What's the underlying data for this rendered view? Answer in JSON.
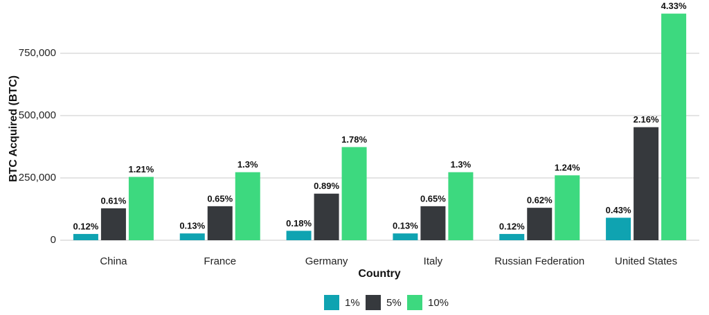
{
  "chart_data": {
    "type": "bar",
    "y_label": "BTC Acquired (BTC)",
    "x_label": "Country",
    "categories": [
      "China",
      "France",
      "Germany",
      "Italy",
      "Russian Federation",
      "United States"
    ],
    "series": [
      {
        "name": "1%",
        "color": "#0fa3b1",
        "values": [
          25200,
          27300,
          37800,
          27300,
          25200,
          90300
        ],
        "value_labels": [
          "0.12%",
          "0.13%",
          "0.18%",
          "0.13%",
          "0.12%",
          "0.43%"
        ]
      },
      {
        "name": "5%",
        "color": "#36393d",
        "values": [
          128100,
          136500,
          186900,
          136500,
          130200,
          453600
        ],
        "value_labels": [
          "0.61%",
          "0.65%",
          "0.89%",
          "0.65%",
          "0.62%",
          "2.16%"
        ]
      },
      {
        "name": "10%",
        "color": "#3dd97f",
        "values": [
          254100,
          273000,
          373800,
          273000,
          260400,
          909300
        ],
        "value_labels": [
          "1.21%",
          "1.3%",
          "1.78%",
          "1.3%",
          "1.24%",
          "4.33%"
        ]
      }
    ],
    "ylim": [
      0,
      950000
    ],
    "yticks": [
      0,
      {
        "value": 250000,
        "label": "250,000"
      },
      {
        "value": 500000,
        "label": "500,000"
      },
      {
        "value": 750000,
        "label": "750,000"
      }
    ],
    "grid": true,
    "legend": "bottom"
  }
}
